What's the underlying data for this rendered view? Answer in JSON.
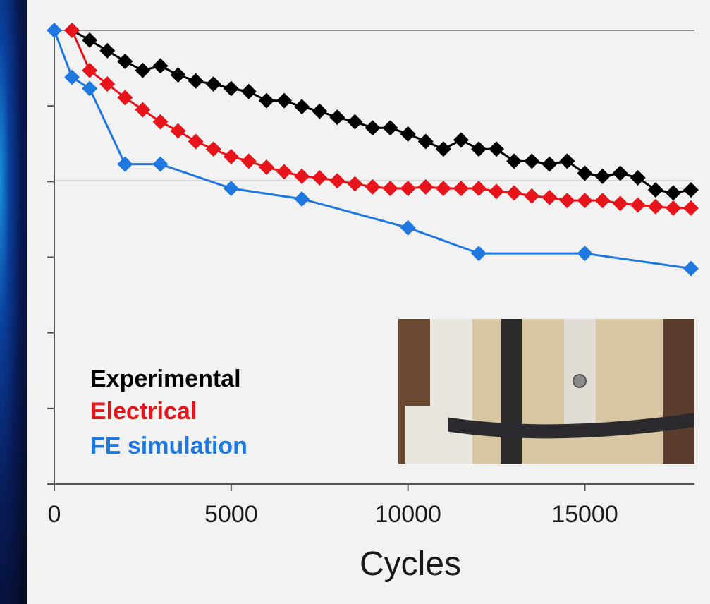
{
  "chart_data": {
    "type": "line",
    "title": "",
    "xlabel": "Cycles",
    "ylabel": "",
    "xlim": [
      0,
      18000
    ],
    "ylim": [
      0.7,
      1.0
    ],
    "x_ticks": [
      0,
      5000,
      10000,
      15000
    ],
    "x_tick_labels": [
      "0",
      "5000",
      "10000",
      "15000"
    ],
    "grid": "horizontal",
    "legend_position": "bottom-left",
    "colors": {
      "experimental": "#000000",
      "electrical": "#e8141b",
      "fe": "#1f78e0",
      "background": "#f2f2f2"
    },
    "series": [
      {
        "name": "Experimental",
        "color": "#000000",
        "x": [
          500,
          1000,
          1500,
          2000,
          2500,
          3000,
          3500,
          4000,
          4500,
          5000,
          5500,
          6000,
          6500,
          7000,
          7500,
          8000,
          8500,
          9000,
          9500,
          10000,
          10500,
          11000,
          11500,
          12000,
          12500,
          13000,
          13500,
          14000,
          14500,
          15000,
          15500,
          16000,
          16500,
          17000,
          17500,
          18000
        ],
        "y": [
          1.0,
          0.9935,
          0.9865,
          0.9795,
          0.9735,
          0.9765,
          0.9705,
          0.9665,
          0.9645,
          0.9615,
          0.9595,
          0.9535,
          0.9535,
          0.9495,
          0.9465,
          0.9425,
          0.9395,
          0.9355,
          0.9355,
          0.9315,
          0.9265,
          0.9215,
          0.9275,
          0.9215,
          0.9215,
          0.9135,
          0.9135,
          0.9115,
          0.9135,
          0.9055,
          0.9035,
          0.9055,
          0.9025,
          0.8945,
          0.8925,
          0.8945
        ]
      },
      {
        "name": "Electrical",
        "color": "#e8141b",
        "x": [
          500,
          1000,
          1500,
          2000,
          2500,
          3000,
          3500,
          4000,
          4500,
          5000,
          5500,
          6000,
          6500,
          7000,
          7500,
          8000,
          8500,
          9000,
          9500,
          10000,
          10500,
          11000,
          11500,
          12000,
          12500,
          13000,
          13500,
          14000,
          14500,
          15000,
          15500,
          16000,
          16500,
          17000,
          17500,
          18000
        ],
        "y": [
          1.0,
          0.9735,
          0.9645,
          0.9555,
          0.9475,
          0.9395,
          0.9335,
          0.9265,
          0.9215,
          0.9165,
          0.9135,
          0.9095,
          0.9065,
          0.9035,
          0.9025,
          0.9005,
          0.8985,
          0.8965,
          0.8955,
          0.8955,
          0.8965,
          0.8955,
          0.8955,
          0.8955,
          0.8935,
          0.8925,
          0.8905,
          0.8895,
          0.8875,
          0.8875,
          0.8875,
          0.8855,
          0.8845,
          0.8835,
          0.8825,
          0.8825
        ]
      },
      {
        "name": "FE simulation",
        "color": "#1f78e0",
        "x": [
          0,
          500,
          1000,
          2000,
          3000,
          5000,
          7000,
          10000,
          12000,
          15000,
          18000
        ],
        "y": [
          1.0,
          0.969,
          0.9615,
          0.9115,
          0.9115,
          0.8955,
          0.8885,
          0.8695,
          0.8525,
          0.8525,
          0.8425
        ]
      }
    ]
  },
  "inset": {
    "description": ""
  }
}
